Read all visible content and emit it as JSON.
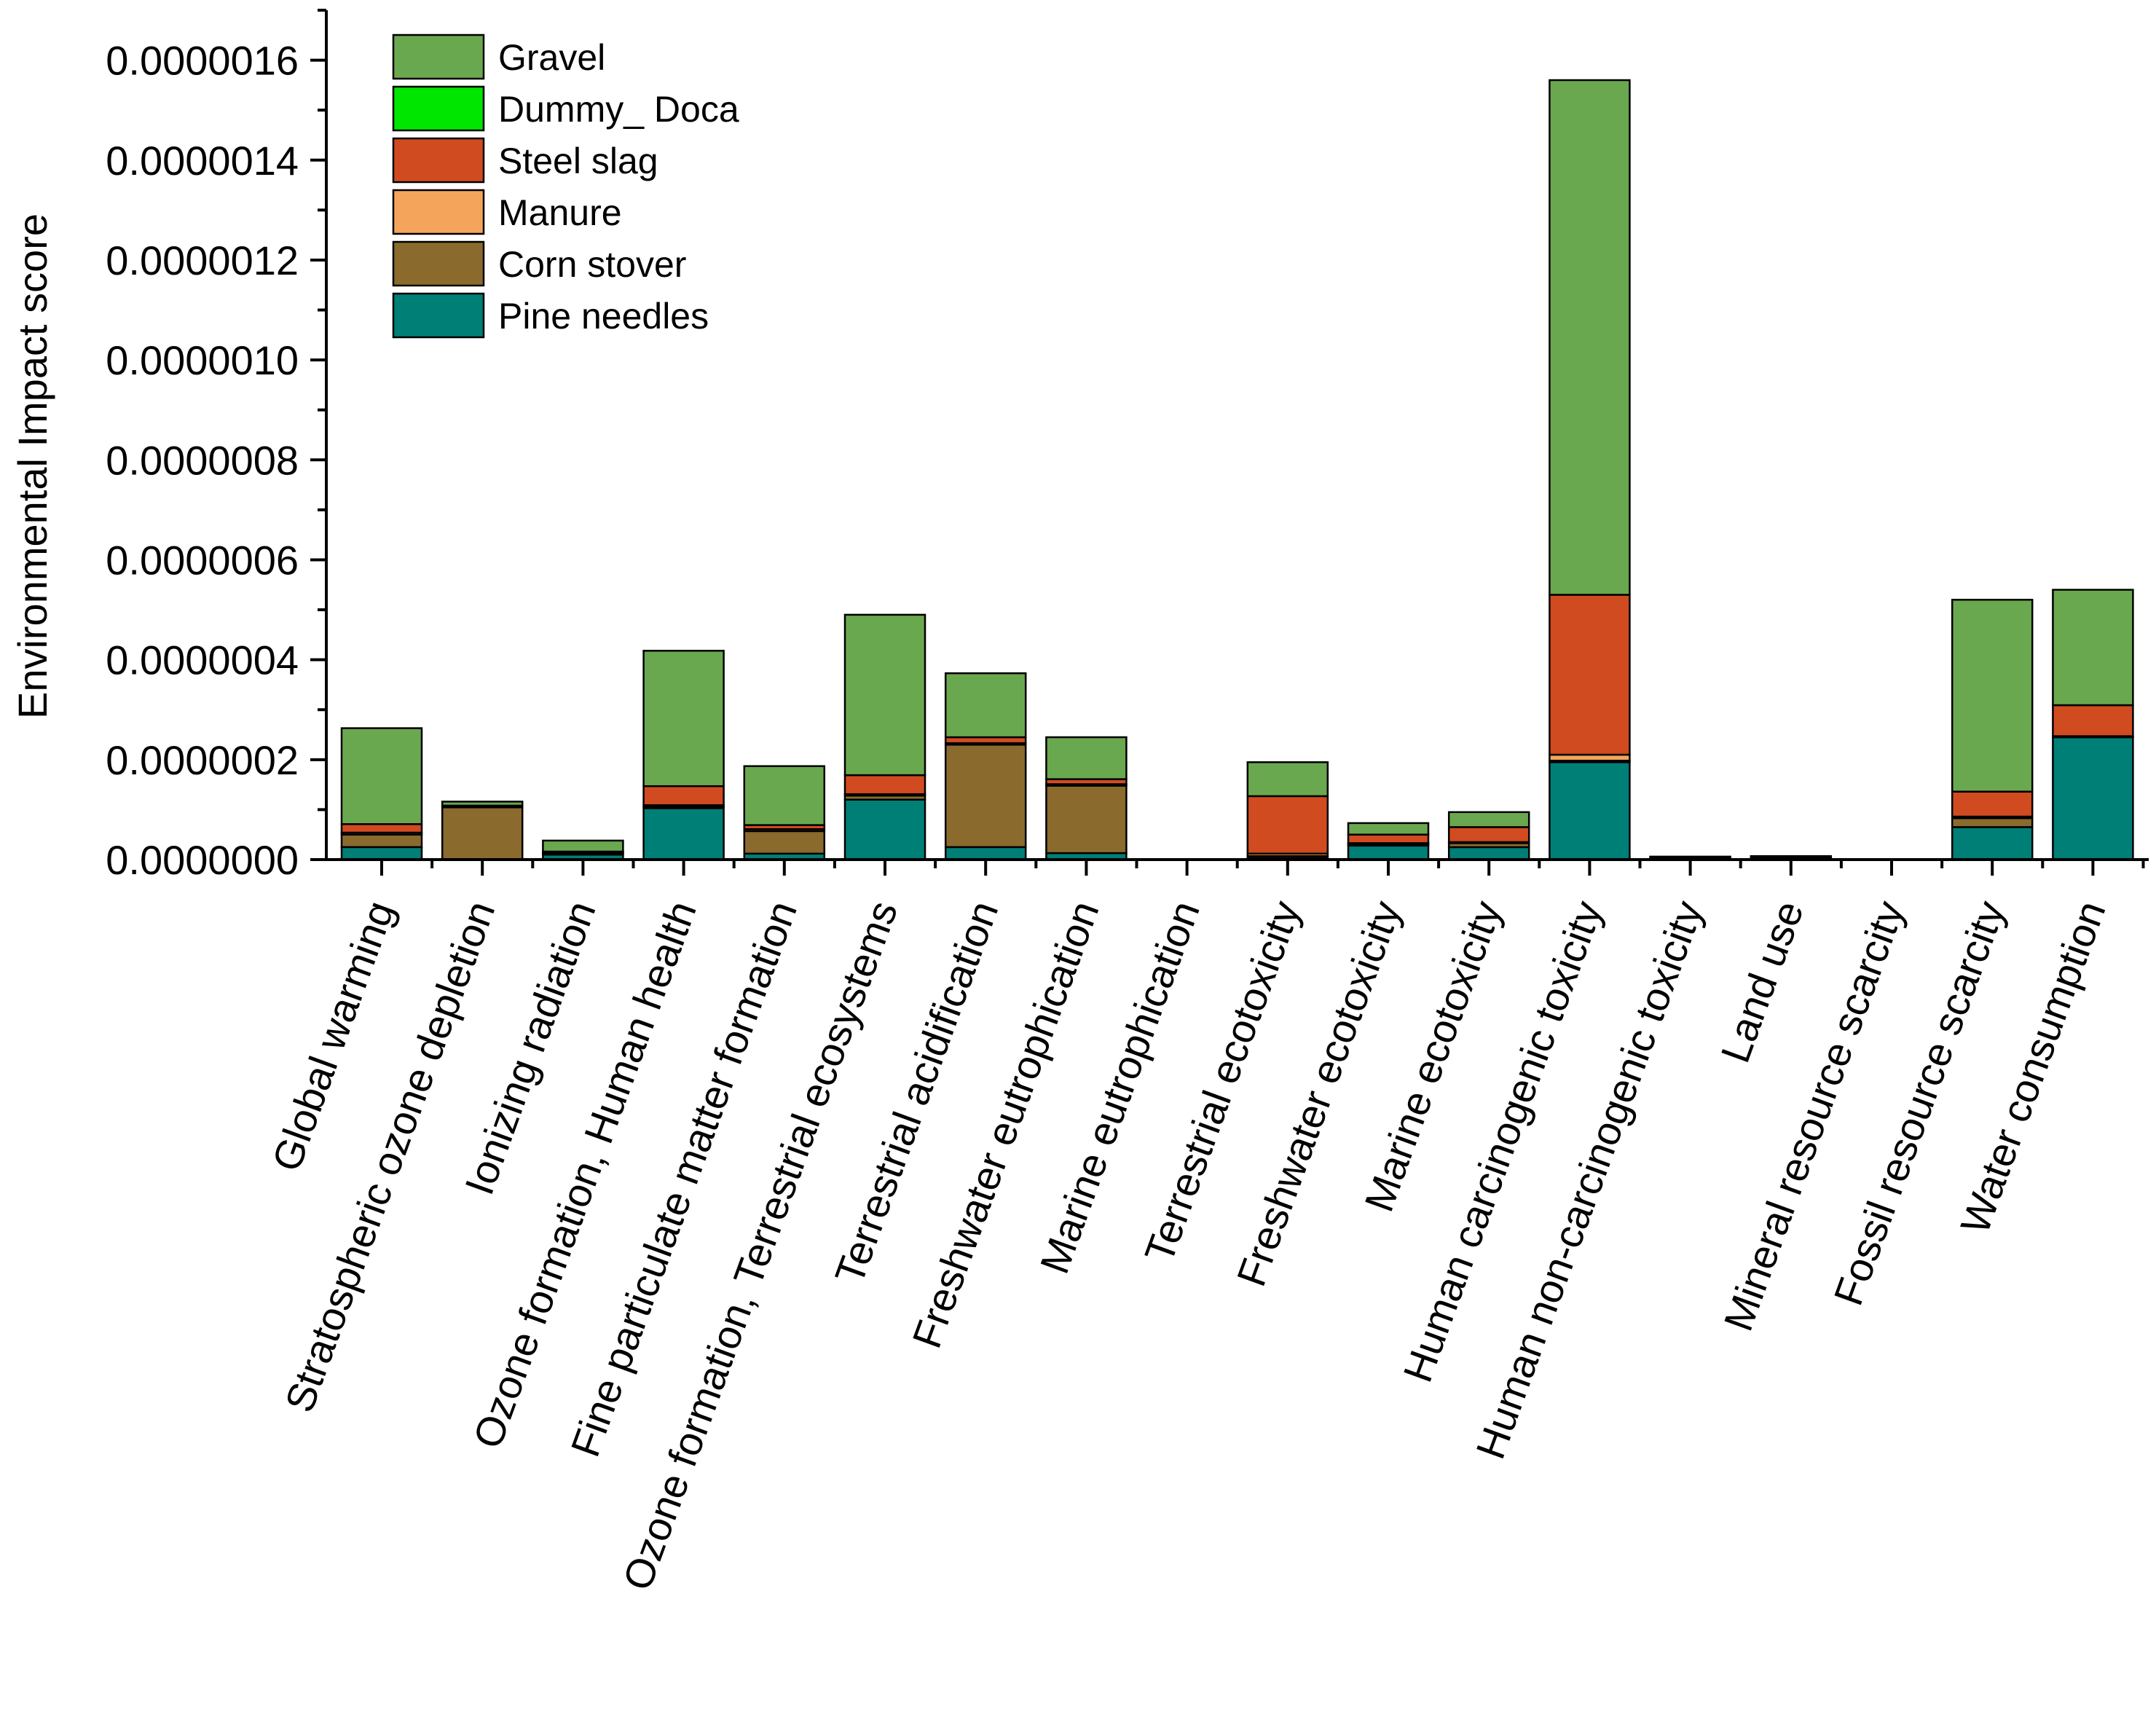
{
  "chart_data": {
    "type": "bar",
    "stacked": true,
    "title": "",
    "xlabel": "",
    "ylabel": "Environmental Impact score",
    "ylim": [
      0,
      1.7e-06
    ],
    "yticks": [
      "0.0000000",
      "0.0000002",
      "0.0000004",
      "0.0000006",
      "0.0000008",
      "0.0000010",
      "0.0000012",
      "0.0000014",
      "0.0000016"
    ],
    "ytick_values": [
      0,
      2e-07,
      4e-07,
      6e-07,
      8e-07,
      1e-06,
      1.2e-06,
      1.4e-06,
      1.6e-06
    ],
    "legend_position": "top-left",
    "categories": [
      "Global warming",
      "Stratospheric ozone depletion",
      "Ionizing radiation",
      "Ozone formation, Human health",
      "Fine particulate matter formation",
      "Ozone formation, Terrestrial ecosystems",
      "Terrestrial acidification",
      "Freshwater eutrophication",
      "Marine eutrophication",
      "Terrestrial ecotoxicity",
      "Freshwater ecotoxicity",
      "Marine ecotoxicity",
      "Human carcinogenic toxicity",
      "Human non-carcinogenic toxicity",
      "Land use",
      "Mineral resource scarcity",
      "Fossil resource scarcity",
      "Water consumption"
    ],
    "series": [
      {
        "name": "Pine needles",
        "color": "#007f77",
        "values": [
          2.5e-08,
          0,
          1e-08,
          1.03e-07,
          1.2e-08,
          1.2e-07,
          2.5e-08,
          1.3e-08,
          0,
          3e-09,
          2.8e-08,
          2.5e-08,
          1.95e-07,
          3e-09,
          3e-09,
          0,
          6.5e-08,
          2.45e-07
        ]
      },
      {
        "name": "Corn stover",
        "color": "#8b6a2e",
        "values": [
          2.5e-08,
          1.05e-07,
          3e-09,
          3e-09,
          4.5e-08,
          8e-09,
          2.05e-07,
          1.35e-07,
          0,
          4e-09,
          3e-09,
          8e-09,
          3e-09,
          1e-09,
          1e-09,
          0,
          1.8e-08,
          0
        ]
      },
      {
        "name": "Manure",
        "color": "#f5a55b",
        "values": [
          4e-09,
          1e-09,
          1e-09,
          3e-09,
          4e-09,
          3e-09,
          3e-09,
          3e-09,
          0,
          5e-09,
          2e-09,
          2e-09,
          1.2e-08,
          0,
          0,
          0,
          3e-09,
          2e-09
        ]
      },
      {
        "name": "Steel slag",
        "color": "#d14b20",
        "values": [
          1.7e-08,
          2e-09,
          2e-09,
          3.8e-08,
          8e-09,
          3.8e-08,
          1.2e-08,
          1e-08,
          0,
          1.15e-07,
          1.7e-08,
          3e-08,
          3.2e-07,
          0,
          0,
          0,
          5e-08,
          6.2e-08
        ]
      },
      {
        "name": "Dummy_ Doca",
        "color": "#00e600",
        "values": [
          0,
          0,
          0,
          0,
          0,
          0,
          0,
          0,
          0,
          0,
          0,
          0,
          0,
          0,
          0,
          0,
          0,
          0
        ]
      },
      {
        "name": "Gravel",
        "color": "#6aa84f",
        "values": [
          1.92e-07,
          8e-09,
          2.2e-08,
          2.71e-07,
          1.18e-07,
          3.21e-07,
          1.28e-07,
          8.4e-08,
          0,
          6.8e-08,
          2.3e-08,
          3e-08,
          1.03e-06,
          2e-09,
          3e-09,
          0,
          3.84e-07,
          2.31e-07
        ]
      }
    ],
    "legend_entries": [
      "Gravel",
      "Dummy_ Doca",
      "Steel slag",
      "Manure",
      "Corn stover",
      "Pine needles"
    ]
  }
}
